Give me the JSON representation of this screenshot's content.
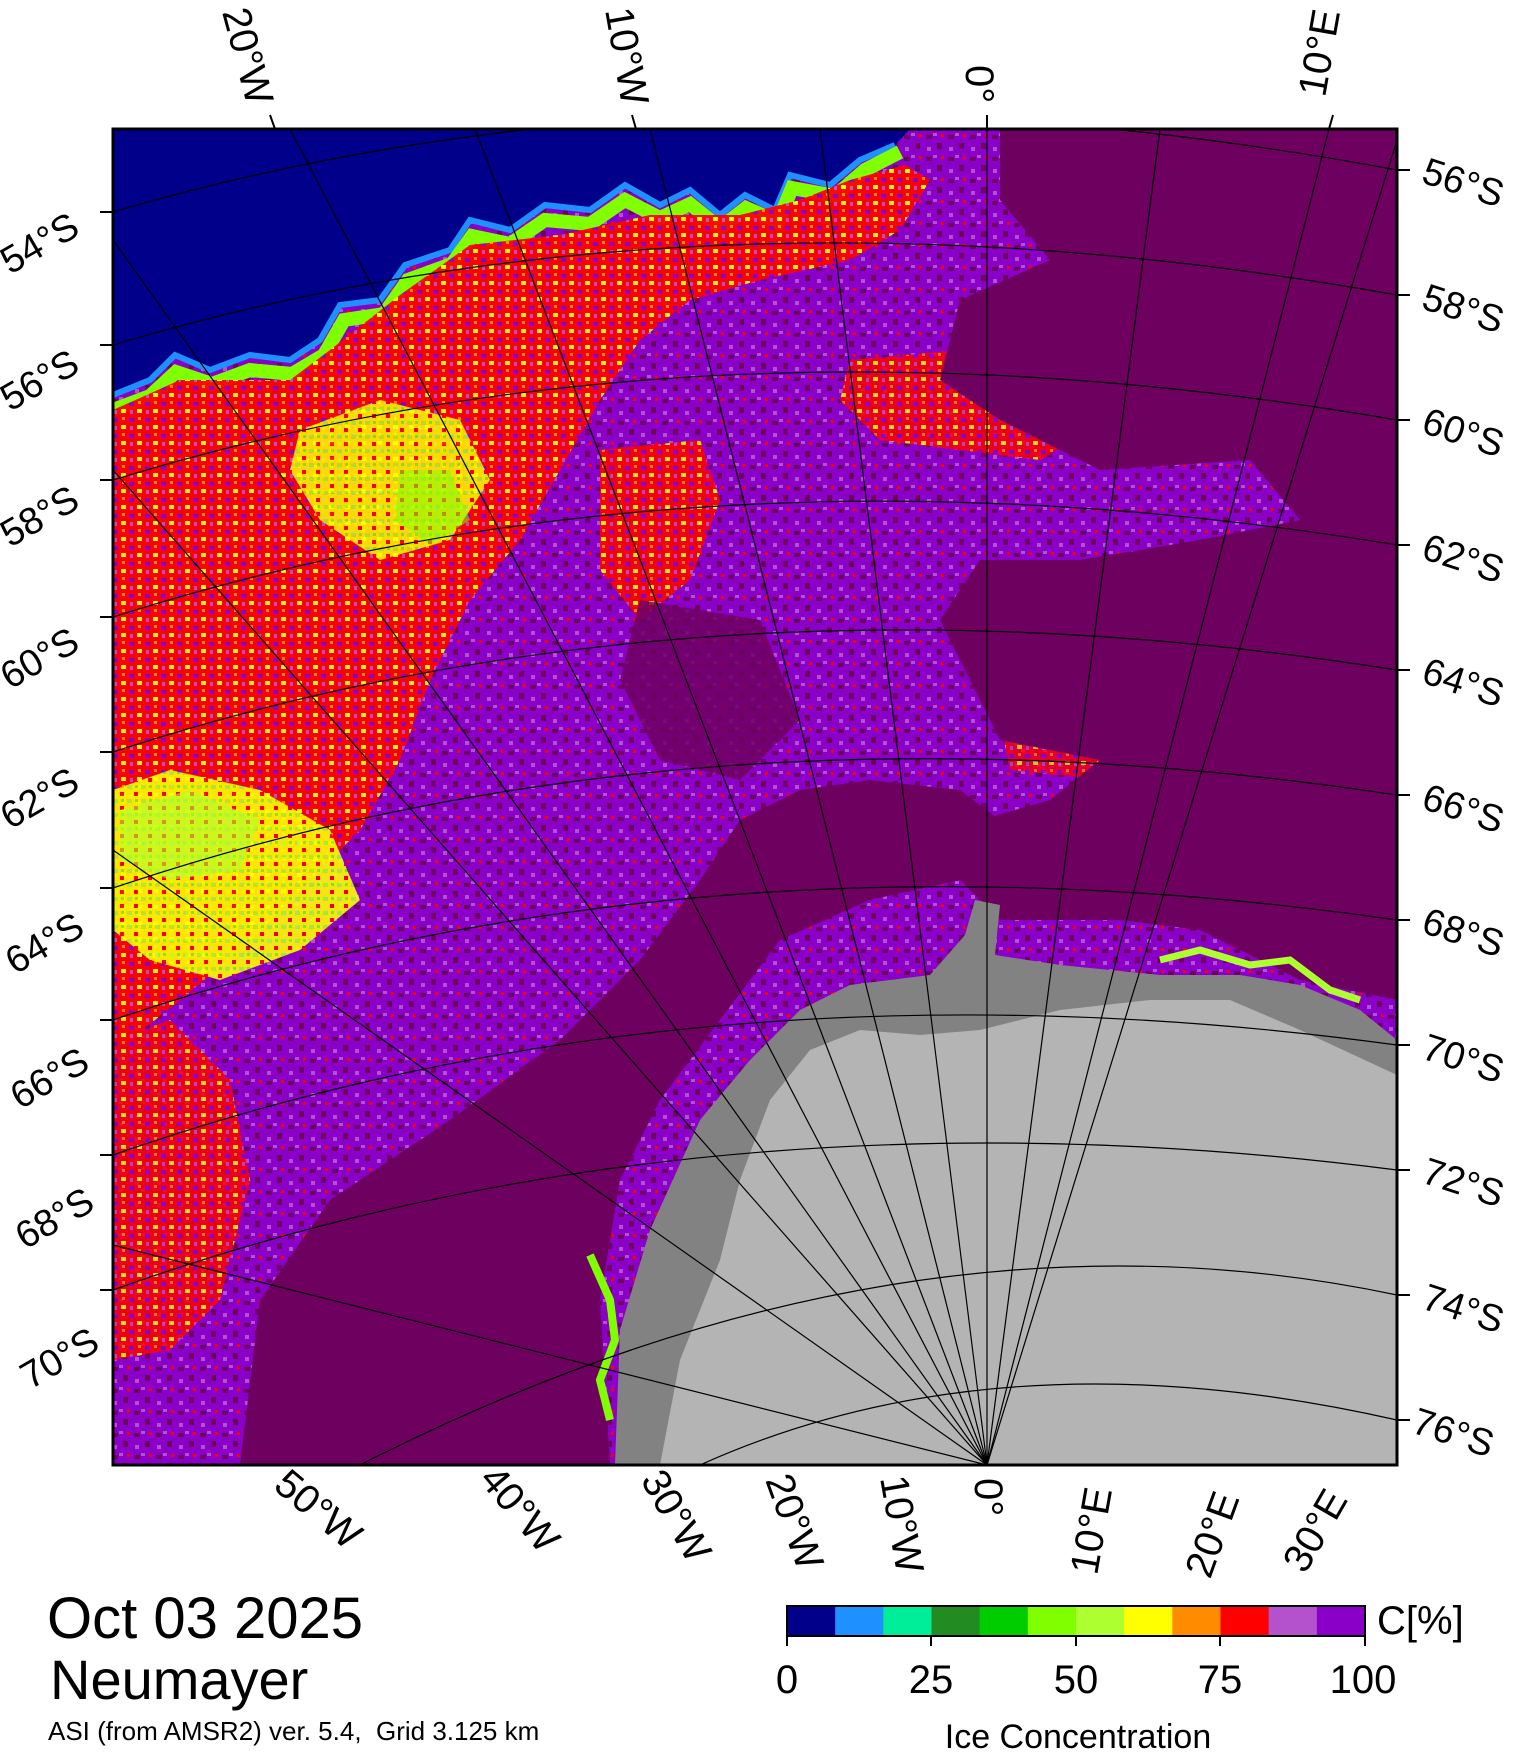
{
  "map": {
    "date": "Oct 03 2025",
    "station": "Neumayer",
    "product": "ASI (from AMSR2) ver. 5.4,  Grid 3.125 km",
    "top_longitude_labels": [
      "20°W",
      "10°W",
      "0°",
      "10°E"
    ],
    "left_latitude_labels": [
      "54°S",
      "56°S",
      "58°S",
      "60°S",
      "62°S",
      "64°S",
      "66°S",
      "68°S",
      "70°S"
    ],
    "right_latitude_labels": [
      "56°S",
      "58°S",
      "60°S",
      "62°S",
      "64°S",
      "66°S",
      "68°S",
      "70°S",
      "72°S",
      "74°S",
      "76°S"
    ],
    "bottom_longitude_labels": [
      "50°W",
      "40°W",
      "30°W",
      "20°W",
      "10°W",
      "0°",
      "10°E",
      "20°E",
      "30°E"
    ],
    "colors": {
      "open_water": "#00008b",
      "ice_100": "#6e0060",
      "ice_95": "#8a00c8",
      "land": "#b4b4b4",
      "ice_shelf": "#828282"
    }
  },
  "colorbar": {
    "title": "Ice Concentration",
    "unit": "C[%]",
    "ticks": [
      "0",
      "25",
      "50",
      "75",
      "100"
    ],
    "colors": [
      "#00008b",
      "#1e90ff",
      "#00ee99",
      "#228b22",
      "#00cd00",
      "#7fff00",
      "#adff2f",
      "#ffff00",
      "#ff8c00",
      "#ff0000",
      "#b452cd",
      "#8a00c8"
    ]
  }
}
